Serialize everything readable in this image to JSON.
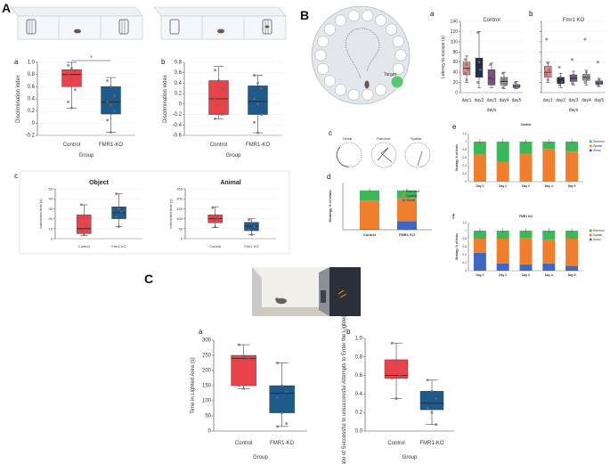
{
  "figure": {
    "label_A": "A",
    "label_B": "B",
    "label_C": "C"
  },
  "colors": {
    "control": "#e8434a",
    "fmr1": "#1d5b8c",
    "lightbox": "#ebe6da",
    "dark": "#2b2f3a",
    "random": "#3cb85a",
    "spatial": "#f07f2d",
    "serial": "#3f68c4",
    "target": "#54c86a",
    "rose": "#d98a8a",
    "navy": "#22304e",
    "purple": "#7a4e86",
    "gray": "#8f8f8f",
    "slate": "#5b7086"
  },
  "chart_data": [
    {
      "id": "A_a",
      "type": "box",
      "panel": "a",
      "ylabel": "Discrimination index",
      "xlabel": "Group",
      "ylim": [
        -0.2,
        1.0
      ],
      "yticks": [
        -0.2,
        0,
        0.2,
        0.4,
        0.6,
        0.8,
        1.0
      ],
      "tick_labels": [
        "-0.2",
        "0",
        "0.2",
        "0.4",
        "0.6",
        "0.8",
        "1.0"
      ],
      "categories": [
        "Control",
        "FMR1-KO"
      ],
      "significance": "*",
      "boxes": [
        {
          "name": "Control",
          "min": 0.25,
          "q1": 0.6,
          "median": 0.8,
          "q3": 0.88,
          "max": 1.0,
          "points": [
            0.95,
            0.9,
            0.85,
            0.8,
            0.7,
            0.55,
            0.35,
            0.25
          ]
        },
        {
          "name": "FMR1-KO",
          "min": -0.15,
          "q1": 0.15,
          "median": 0.35,
          "q3": 0.6,
          "max": 0.75,
          "points": [
            0.7,
            0.6,
            0.45,
            0.35,
            0.3,
            0.2,
            0.05,
            -0.15
          ]
        }
      ]
    },
    {
      "id": "A_b",
      "type": "box",
      "panel": "b",
      "ylabel": "Discrimination index",
      "xlabel": "Group",
      "ylim": [
        -0.6,
        0.8
      ],
      "yticks": [
        -0.6,
        -0.4,
        -0.2,
        0,
        0.2,
        0.4,
        0.6,
        0.8
      ],
      "tick_labels": [
        "-0.6",
        "-0.4",
        "-0.2",
        "0",
        "0.2",
        "0.4",
        "0.6",
        "0.8"
      ],
      "categories": [
        "Control",
        "FMR1-KO"
      ],
      "boxes": [
        {
          "name": "Control",
          "min": -0.28,
          "q1": -0.2,
          "median": 0.1,
          "q3": 0.45,
          "max": 0.72,
          "points": [
            0.65,
            0.45,
            0.3,
            0.1,
            0.0,
            -0.2,
            -0.28
          ]
        },
        {
          "name": "FMR1-KO",
          "min": -0.55,
          "q1": -0.2,
          "median": 0.05,
          "q3": 0.35,
          "max": 0.55,
          "points": [
            0.55,
            0.4,
            0.3,
            0.1,
            0.0,
            -0.2,
            -0.35,
            -0.55
          ]
        }
      ]
    },
    {
      "id": "A_c_object",
      "type": "box",
      "title": "Object",
      "ylabel": "Interaction time (s)",
      "ylim": [
        0,
        50
      ],
      "yticks": [
        0,
        10,
        20,
        30,
        40,
        50
      ],
      "tick_labels": [
        "0",
        "10",
        "20",
        "30",
        "40",
        "50"
      ],
      "categories": [
        "Control",
        "Fmr1 KO"
      ],
      "boxes": [
        {
          "name": "Control",
          "min": 3,
          "q1": 5,
          "median": 10,
          "q3": 24,
          "max": 34,
          "points": [
            34,
            21,
            12,
            8,
            5
          ]
        },
        {
          "name": "Fmr1 KO",
          "min": 12,
          "q1": 20,
          "median": 26,
          "q3": 32,
          "max": 45,
          "points": [
            45,
            30,
            27,
            22,
            12
          ]
        }
      ]
    },
    {
      "id": "A_c_animal",
      "type": "box",
      "title": "Animal",
      "ylabel": "Interaction time (s)",
      "ylim": [
        0,
        250
      ],
      "yticks": [
        0,
        50,
        100,
        150,
        200,
        250
      ],
      "tick_labels": [
        "0",
        "50",
        "100",
        "150",
        "200",
        "250"
      ],
      "categories": [
        "Control",
        "Fmr1 KO"
      ],
      "boxes": [
        {
          "name": "Control",
          "min": 55,
          "q1": 80,
          "median": 100,
          "q3": 120,
          "max": 160,
          "points": [
            155,
            110,
            100,
            90,
            60
          ]
        },
        {
          "name": "Fmr1 KO",
          "min": 20,
          "q1": 40,
          "median": 62,
          "q3": 82,
          "max": 100,
          "points": [
            95,
            80,
            60,
            45,
            20
          ]
        }
      ]
    },
    {
      "id": "B_a",
      "type": "box",
      "panel": "a",
      "title": "Control",
      "ylabel": "Latency to escape (s)",
      "xlabel": "days",
      "ylim": [
        0,
        140
      ],
      "yticks": [
        0,
        20,
        40,
        60,
        80,
        100,
        120,
        140
      ],
      "tick_labels": [
        "0",
        "20",
        "40",
        "60",
        "80",
        "100",
        "120",
        "140"
      ],
      "categories": [
        "day1",
        "day2",
        "day3",
        "day4",
        "day5"
      ],
      "boxes": [
        {
          "name": "day1",
          "min": 20,
          "q1": 35,
          "median": 48,
          "q3": 60,
          "max": 72,
          "color": "rose",
          "points": [
            65,
            55,
            45,
            38,
            25
          ]
        },
        {
          "name": "day2",
          "min": 10,
          "q1": 30,
          "median": 55,
          "q3": 68,
          "max": 120,
          "color": "navy",
          "points": [
            118,
            60,
            45,
            20
          ]
        },
        {
          "name": "day3",
          "min": 10,
          "q1": 15,
          "median": 28,
          "q3": 45,
          "max": 58,
          "color": "purple",
          "points": [
            55,
            40,
            30,
            18
          ]
        },
        {
          "name": "day4",
          "min": 8,
          "q1": 15,
          "median": 22,
          "q3": 30,
          "max": 40,
          "color": "gray",
          "points": [
            38,
            25,
            15,
            10
          ]
        },
        {
          "name": "day5",
          "min": 8,
          "q1": 10,
          "median": 12,
          "q3": 16,
          "max": 22,
          "color": "slate",
          "points": [
            20,
            14,
            11,
            9
          ]
        }
      ]
    },
    {
      "id": "B_b",
      "type": "box",
      "panel": "b",
      "title": "Fmr1 KO",
      "xlabel": "days",
      "ylim": [
        0,
        140
      ],
      "yticks": [
        0,
        20,
        40,
        60,
        80,
        100,
        120,
        140
      ],
      "categories": [
        "day1",
        "day2",
        "day3",
        "day4",
        "day5"
      ],
      "boxes": [
        {
          "name": "day1",
          "min": 20,
          "q1": 30,
          "median": 40,
          "q3": 52,
          "max": 60,
          "color": "rose",
          "points": [
            105,
            58,
            45,
            35,
            25
          ]
        },
        {
          "name": "day2",
          "min": 10,
          "q1": 18,
          "median": 24,
          "q3": 30,
          "max": 38,
          "color": "navy",
          "points": [
            50,
            30,
            22,
            15
          ]
        },
        {
          "name": "day3",
          "min": 15,
          "q1": 22,
          "median": 28,
          "q3": 35,
          "max": 42,
          "color": "purple",
          "points": [
            65,
            35,
            25,
            18
          ]
        },
        {
          "name": "day4",
          "min": 15,
          "q1": 24,
          "median": 30,
          "q3": 36,
          "max": 44,
          "color": "gray",
          "points": [
            105,
            40,
            28,
            20
          ]
        },
        {
          "name": "day5",
          "min": 12,
          "q1": 16,
          "median": 19,
          "q3": 23,
          "max": 28,
          "color": "slate",
          "points": [
            60,
            25,
            18,
            14
          ]
        }
      ]
    },
    {
      "id": "B_d",
      "type": "stacked_bar",
      "panel": "d",
      "ylabel": "Strategy % of trials",
      "ylim": [
        0,
        1.2
      ],
      "categories": [
        "Control",
        "FMR1 KO"
      ],
      "series": [
        {
          "name": "Serial",
          "color": "serial",
          "values": [
            0.02,
            0.22
          ]
        },
        {
          "name": "Spatial",
          "color": "spatial",
          "values": [
            0.72,
            0.58
          ]
        },
        {
          "name": "Random",
          "color": "random",
          "values": [
            0.26,
            0.2
          ]
        }
      ],
      "legend": [
        "Random",
        "Spatial",
        "Serial"
      ]
    },
    {
      "id": "B_e",
      "type": "stacked_bar",
      "panel": "e",
      "title": "Control",
      "ylabel": "Strategy % of trials",
      "ylim": [
        0,
        1.2
      ],
      "yticks": [
        0,
        0.2,
        0.4,
        0.6,
        0.8,
        1,
        1.2
      ],
      "tick_labels": [
        "0",
        "0.2",
        "0.4",
        "0.6",
        "0.8",
        "1",
        "1.2"
      ],
      "categories": [
        "Day 1",
        "Day 2",
        "Day 3",
        "Day 4",
        "Day 5"
      ],
      "series": [
        {
          "name": "Serial",
          "color": "serial",
          "values": [
            0,
            0,
            0,
            0,
            0
          ]
        },
        {
          "name": "Spatial",
          "color": "spatial",
          "values": [
            0.68,
            0.5,
            0.7,
            0.82,
            0.75
          ]
        },
        {
          "name": "Random",
          "color": "random",
          "values": [
            0.32,
            0.5,
            0.3,
            0.18,
            0.25
          ]
        }
      ],
      "legend": [
        "Random",
        "Spatial",
        "Serial"
      ]
    },
    {
      "id": "B_f",
      "type": "stacked_bar",
      "panel": "f",
      "title": "FMR1 KO",
      "ylabel": "Strategy % of trials",
      "ylim": [
        0,
        1.2
      ],
      "yticks": [
        0,
        0.2,
        0.4,
        0.6,
        0.8,
        1,
        1.2
      ],
      "tick_labels": [
        "0",
        "0.2",
        "0.4",
        "0.6",
        "0.8",
        "1",
        "1.2"
      ],
      "categories": [
        "Day 1",
        "Day 2",
        "Day 3",
        "Day 4",
        "Day 5"
      ],
      "series": [
        {
          "name": "Serial",
          "color": "serial",
          "values": [
            0.45,
            0.18,
            0.16,
            0.18,
            0.12
          ]
        },
        {
          "name": "Spatial",
          "color": "spatial",
          "values": [
            0.35,
            0.62,
            0.66,
            0.6,
            0.68
          ]
        },
        {
          "name": "Random",
          "color": "random",
          "values": [
            0.2,
            0.2,
            0.18,
            0.22,
            0.2
          ]
        }
      ],
      "legend": [
        "Random",
        "Spatial",
        "Serial"
      ]
    },
    {
      "id": "C_a",
      "type": "box",
      "panel": "a",
      "ylabel": "Time in Lighted Area (s)",
      "xlabel": "Group",
      "ylim": [
        0,
        300
      ],
      "yticks": [
        0,
        50,
        100,
        150,
        200,
        250,
        300
      ],
      "tick_labels": [
        "0",
        "50",
        "100",
        "150",
        "200",
        "250",
        "300"
      ],
      "categories": [
        "Control",
        "FMR1-KO"
      ],
      "boxes": [
        {
          "name": "Control",
          "min": 140,
          "q1": 150,
          "median": 240,
          "q3": 250,
          "max": 285,
          "points": [
            285,
            245,
            240,
            150,
            140
          ]
        },
        {
          "name": "FMR1-KO",
          "min": 15,
          "q1": 60,
          "median": 125,
          "q3": 150,
          "max": 225,
          "points": [
            225,
            150,
            130,
            110,
            60,
            25,
            15
          ]
        }
      ]
    },
    {
      "id": "C_b",
      "type": "box",
      "panel": "b",
      "ylabel": "Ratio of Successful to unsuccessful Attempts to Enter the Lighted Arear",
      "xlabel": "Group",
      "ylim": [
        0,
        1.0
      ],
      "yticks": [
        0,
        0.2,
        0.4,
        0.6,
        0.8,
        1.0
      ],
      "tick_labels": [
        "0.0",
        "0.2",
        "0.4",
        "0.6",
        "0.8",
        "1.0"
      ],
      "categories": [
        "Control",
        "FMR1-KO"
      ],
      "boxes": [
        {
          "name": "Control",
          "min": 0.35,
          "q1": 0.57,
          "median": 0.6,
          "q3": 0.77,
          "max": 0.95,
          "points": [
            0.95,
            0.75,
            0.6,
            0.57,
            0.35
          ]
        },
        {
          "name": "FMR1-KO",
          "min": 0.07,
          "q1": 0.23,
          "median": 0.3,
          "q3": 0.43,
          "max": 0.55,
          "points": [
            0.55,
            0.43,
            0.35,
            0.25,
            0.2,
            0.07
          ]
        }
      ]
    }
  ],
  "maze": {
    "target_label": "Target"
  },
  "strategies": {
    "serial": "Serial",
    "random": "Random",
    "spatial": "Spatial"
  }
}
